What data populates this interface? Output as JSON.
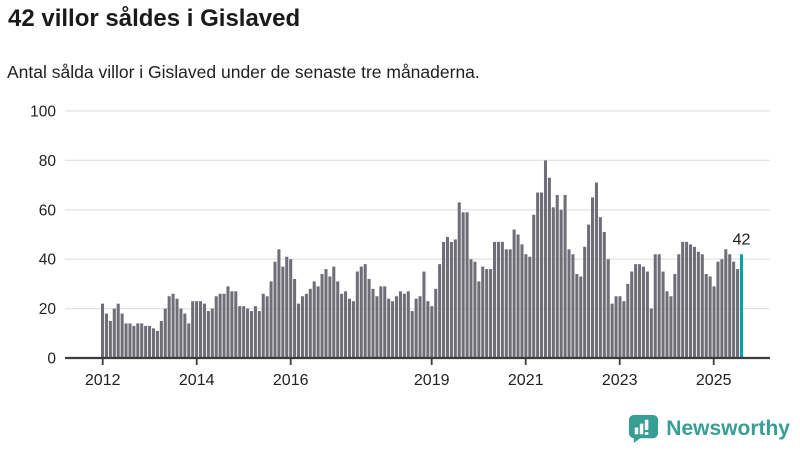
{
  "header": {
    "title": "42 villor såldes i Gislaved",
    "subtitle": "Antal sålda villor i Gislaved under de senaste tre månaderna."
  },
  "chart_data": {
    "type": "bar",
    "title": "42 villor såldes i Gislaved",
    "x_start_year": 2012,
    "frequency": "monthly",
    "values": [
      22,
      18,
      15,
      20,
      22,
      18,
      14,
      14,
      13,
      14,
      14,
      13,
      13,
      12,
      11,
      15,
      20,
      25,
      26,
      24,
      20,
      18,
      14,
      23,
      23,
      23,
      22,
      19,
      20,
      25,
      26,
      26,
      29,
      27,
      27,
      21,
      21,
      20,
      19,
      21,
      19,
      26,
      25,
      31,
      39,
      44,
      37,
      41,
      40,
      32,
      22,
      25,
      26,
      28,
      31,
      29,
      34,
      36,
      33,
      37,
      31,
      26,
      27,
      24,
      23,
      35,
      37,
      38,
      32,
      28,
      25,
      29,
      29,
      24,
      23,
      25,
      27,
      26,
      27,
      19,
      24,
      25,
      35,
      23,
      21,
      28,
      38,
      47,
      49,
      47,
      48,
      63,
      59,
      59,
      40,
      39,
      31,
      37,
      36,
      36,
      47,
      47,
      47,
      44,
      44,
      52,
      50,
      46,
      42,
      41,
      58,
      67,
      67,
      80,
      73,
      61,
      66,
      60,
      66,
      44,
      42,
      34,
      33,
      45,
      54,
      65,
      71,
      57,
      51,
      40,
      22,
      25,
      25,
      23,
      30,
      35,
      38,
      38,
      37,
      35,
      20,
      42,
      42,
      35,
      27,
      25,
      34,
      42,
      47,
      47,
      46,
      45,
      43,
      42,
      34,
      33,
      29,
      39,
      40,
      44,
      42,
      39,
      36,
      42
    ],
    "highlight": {
      "index": 163,
      "label": "42"
    },
    "yticks": [
      "0",
      "20",
      "40",
      "60",
      "80",
      "100"
    ],
    "ylim": [
      0,
      100
    ],
    "xticks": [
      "2012",
      "2014",
      "2016",
      "2019",
      "2021",
      "2023",
      "2025"
    ],
    "grid": true,
    "legend": null,
    "colors": {
      "bar": "#6e6e78",
      "highlight": "#00a3a9",
      "grid": "#e4e4e4",
      "axis": "#3c3c3c",
      "text": "#222222"
    }
  },
  "footer": {
    "brand": "Newsworthy",
    "logo_color": "#379e95"
  }
}
